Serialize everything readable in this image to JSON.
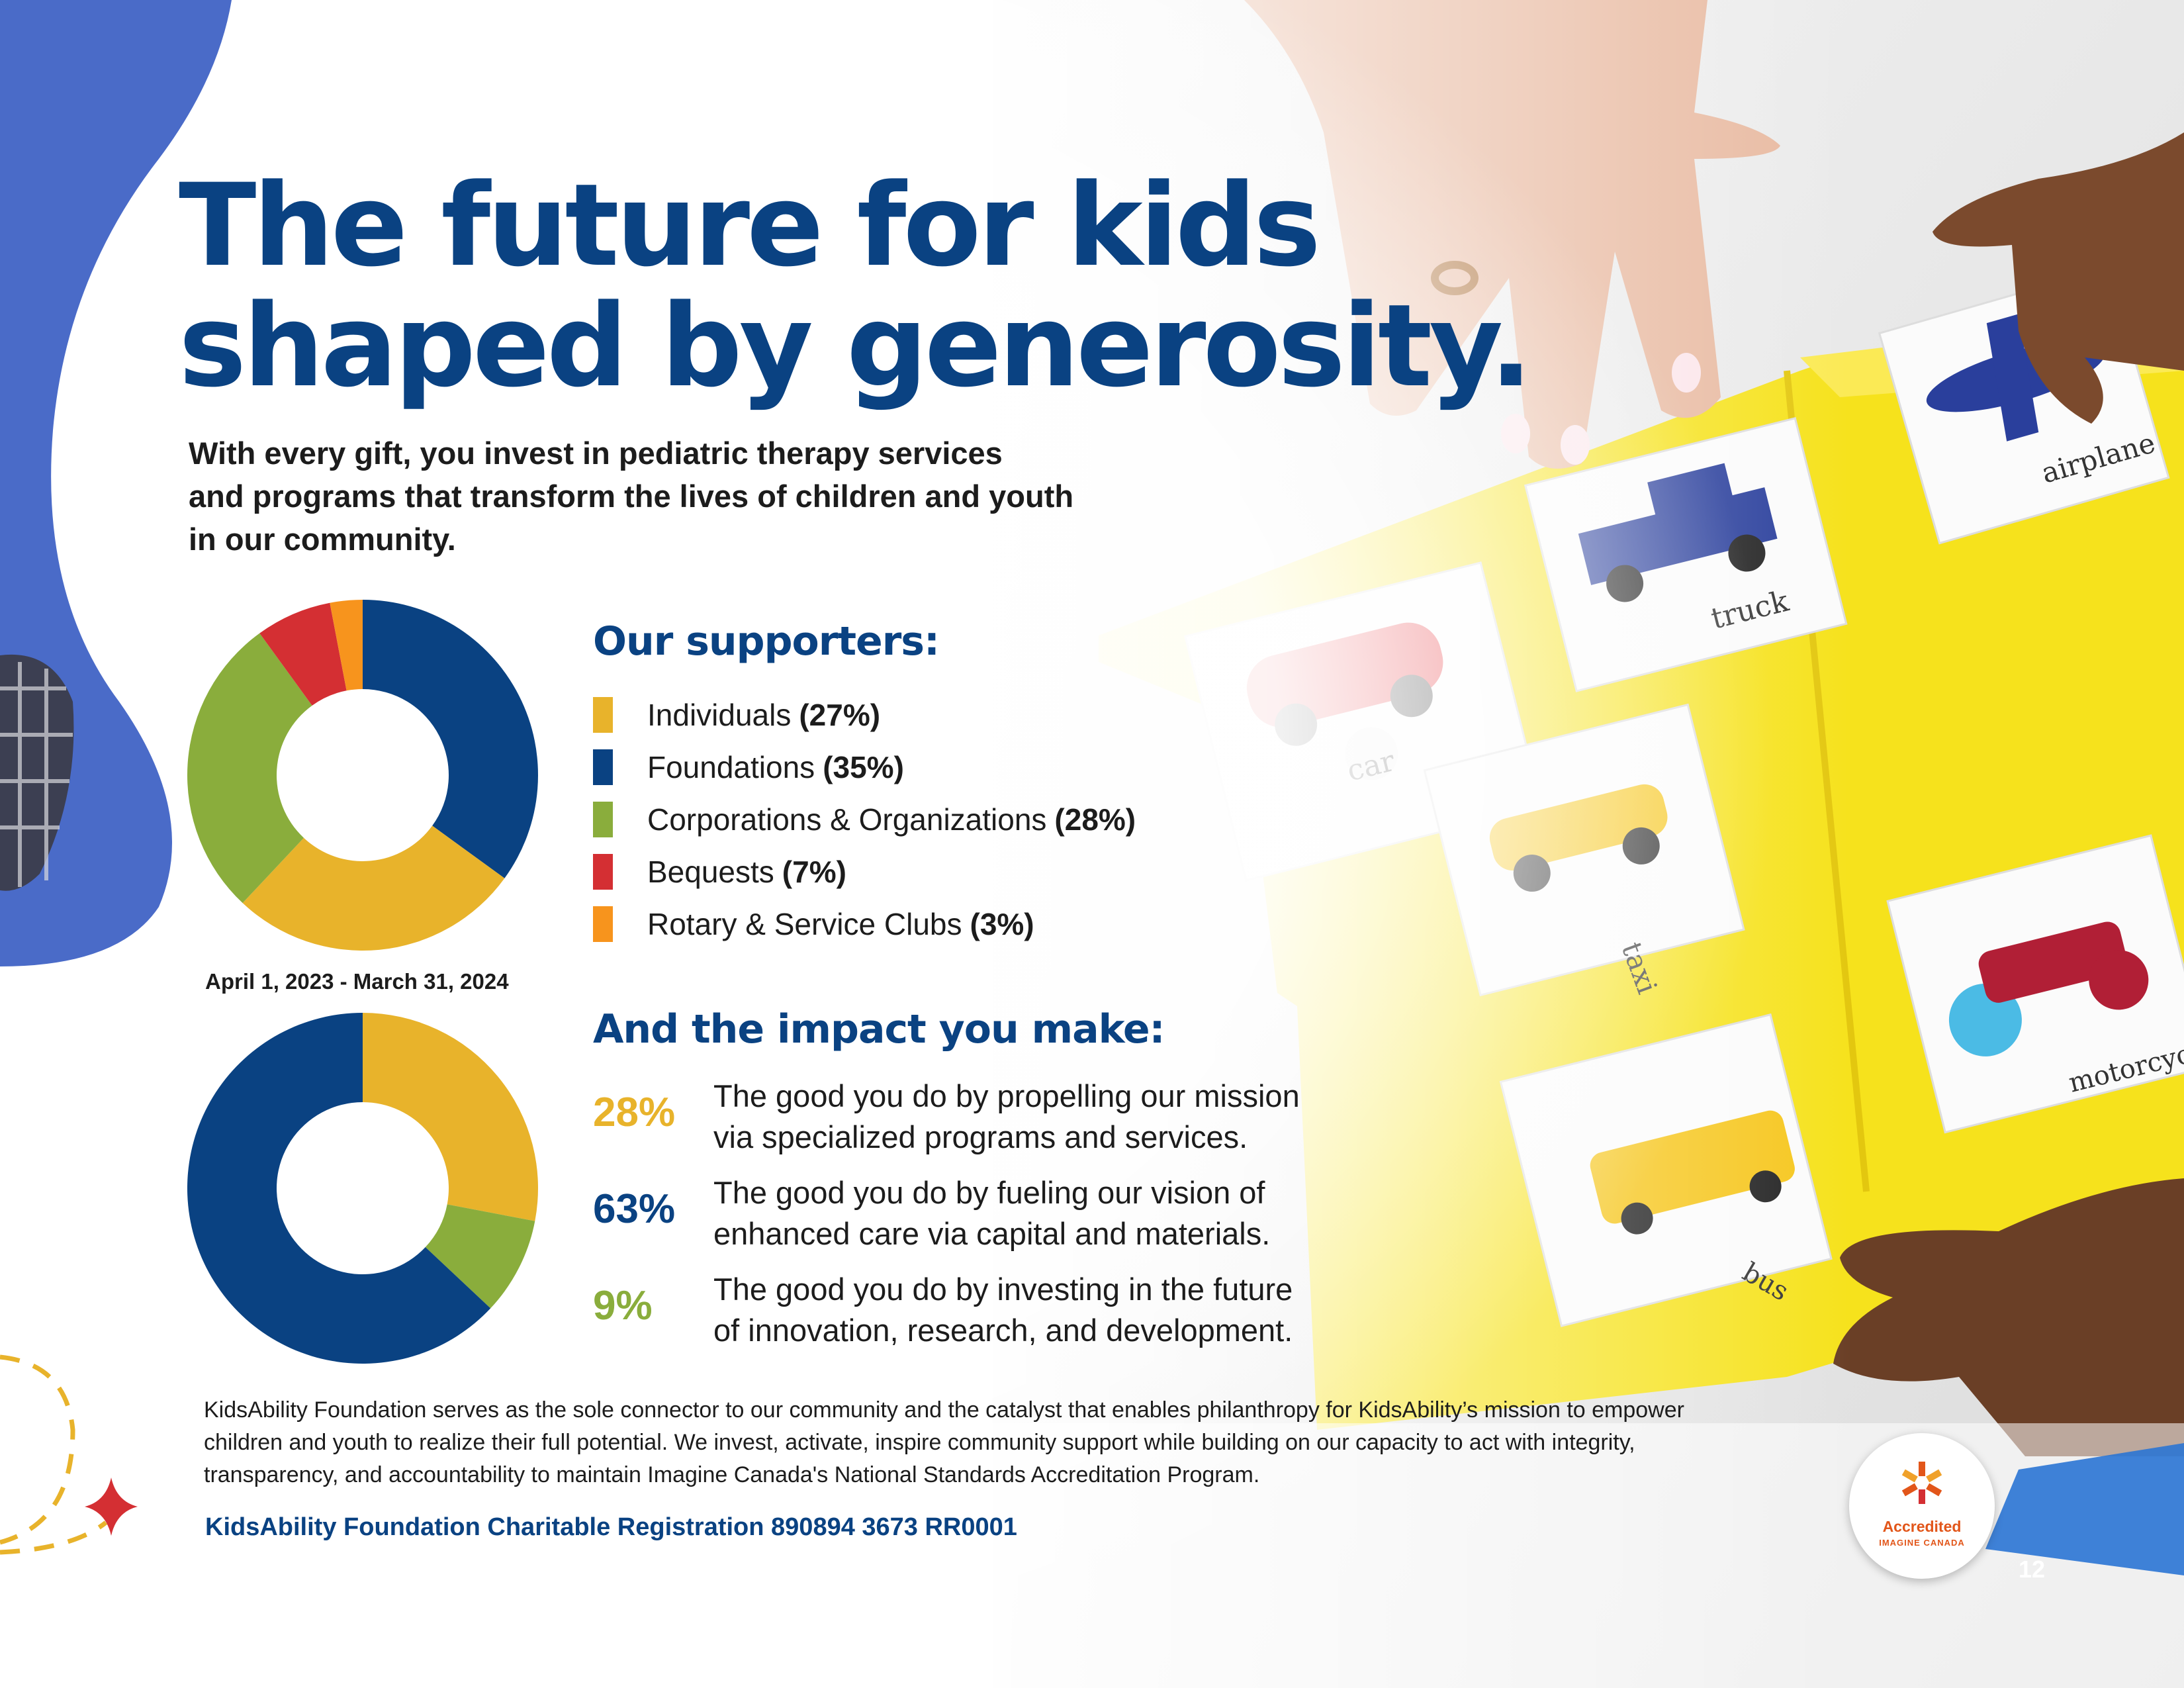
{
  "headline": [
    "The future for kids",
    "shaped by generosity."
  ],
  "intro": [
    "With every gift, you invest in pediatric therapy services",
    "and programs that transform the lives of children and youth",
    "in our community."
  ],
  "supporters": {
    "heading": "Our supporters:",
    "items": [
      {
        "label": "Individuals",
        "pct": "(27%)",
        "value": 27,
        "color": "#e8b32b"
      },
      {
        "label": "Foundations",
        "pct": "(35%)",
        "value": 35,
        "color": "#0a4282"
      },
      {
        "label": "Corporations & Organizations",
        "pct": "(28%)",
        "value": 28,
        "color": "#8aad3c"
      },
      {
        "label": "Bequests",
        "pct": "(7%)",
        "value": 7,
        "color": "#d42f33"
      },
      {
        "label": "Rotary & Service Clubs",
        "pct": "(3%)",
        "value": 3,
        "color": "#f7941d"
      }
    ]
  },
  "period": "April 1, 2023 - March 31, 2024",
  "impact": {
    "heading": "And the impact you make:",
    "items": [
      {
        "pct": "28%",
        "value": 28,
        "color": "#e8b32b",
        "lines": [
          "The good you do by propelling our mission",
          "via specialized programs and services."
        ]
      },
      {
        "pct": "63%",
        "value": 63,
        "color": "#0a4282",
        "lines": [
          "The good you do by fueling our vision of",
          "enhanced care via capital and materials."
        ]
      },
      {
        "pct": "9%",
        "value": 9,
        "color": "#8aad3c",
        "lines": [
          "The good you do by investing in the future",
          "of innovation, research, and development."
        ]
      }
    ]
  },
  "chart_data": [
    {
      "type": "pie",
      "title": "Our supporters",
      "categories": [
        "Individuals",
        "Foundations",
        "Corporations & Organizations",
        "Bequests",
        "Rotary & Service Clubs"
      ],
      "values": [
        27,
        35,
        28,
        7,
        3
      ]
    },
    {
      "type": "pie",
      "title": "And the impact you make",
      "categories": [
        "Specialized programs and services",
        "Capital and materials",
        "Innovation, research, and development"
      ],
      "values": [
        28,
        63,
        9
      ]
    }
  ],
  "footer": [
    "KidsAbility Foundation serves as the sole connector to our community and the catalyst that enables philanthropy for KidsAbility’s mission to empower",
    "children and youth to realize their full potential. We invest, activate, inspire community support while building on our capacity to act with integrity,",
    "transparency, and accountability to maintain Imagine Canada's National Standards Accreditation Program."
  ],
  "registration": "KidsAbility Foundation Charitable Registration 890894 3673 RR0001",
  "badge": {
    "title": "Accredited",
    "subtitle": "IMAGINE CANADA"
  },
  "page_number": "12",
  "photo_labels": {
    "car": "car",
    "truck": "truck",
    "airplane": "airplane",
    "taxi": "taxi",
    "motorcycle": "motorcycle",
    "bus": "bus"
  },
  "colors": {
    "navy": "#0a4282",
    "blue_shape": "#4a6bc8",
    "yellow": "#e8b32b",
    "green": "#8aad3c",
    "red": "#d42f33",
    "orange": "#f7941d",
    "folder_yellow": "#f6e21c"
  }
}
